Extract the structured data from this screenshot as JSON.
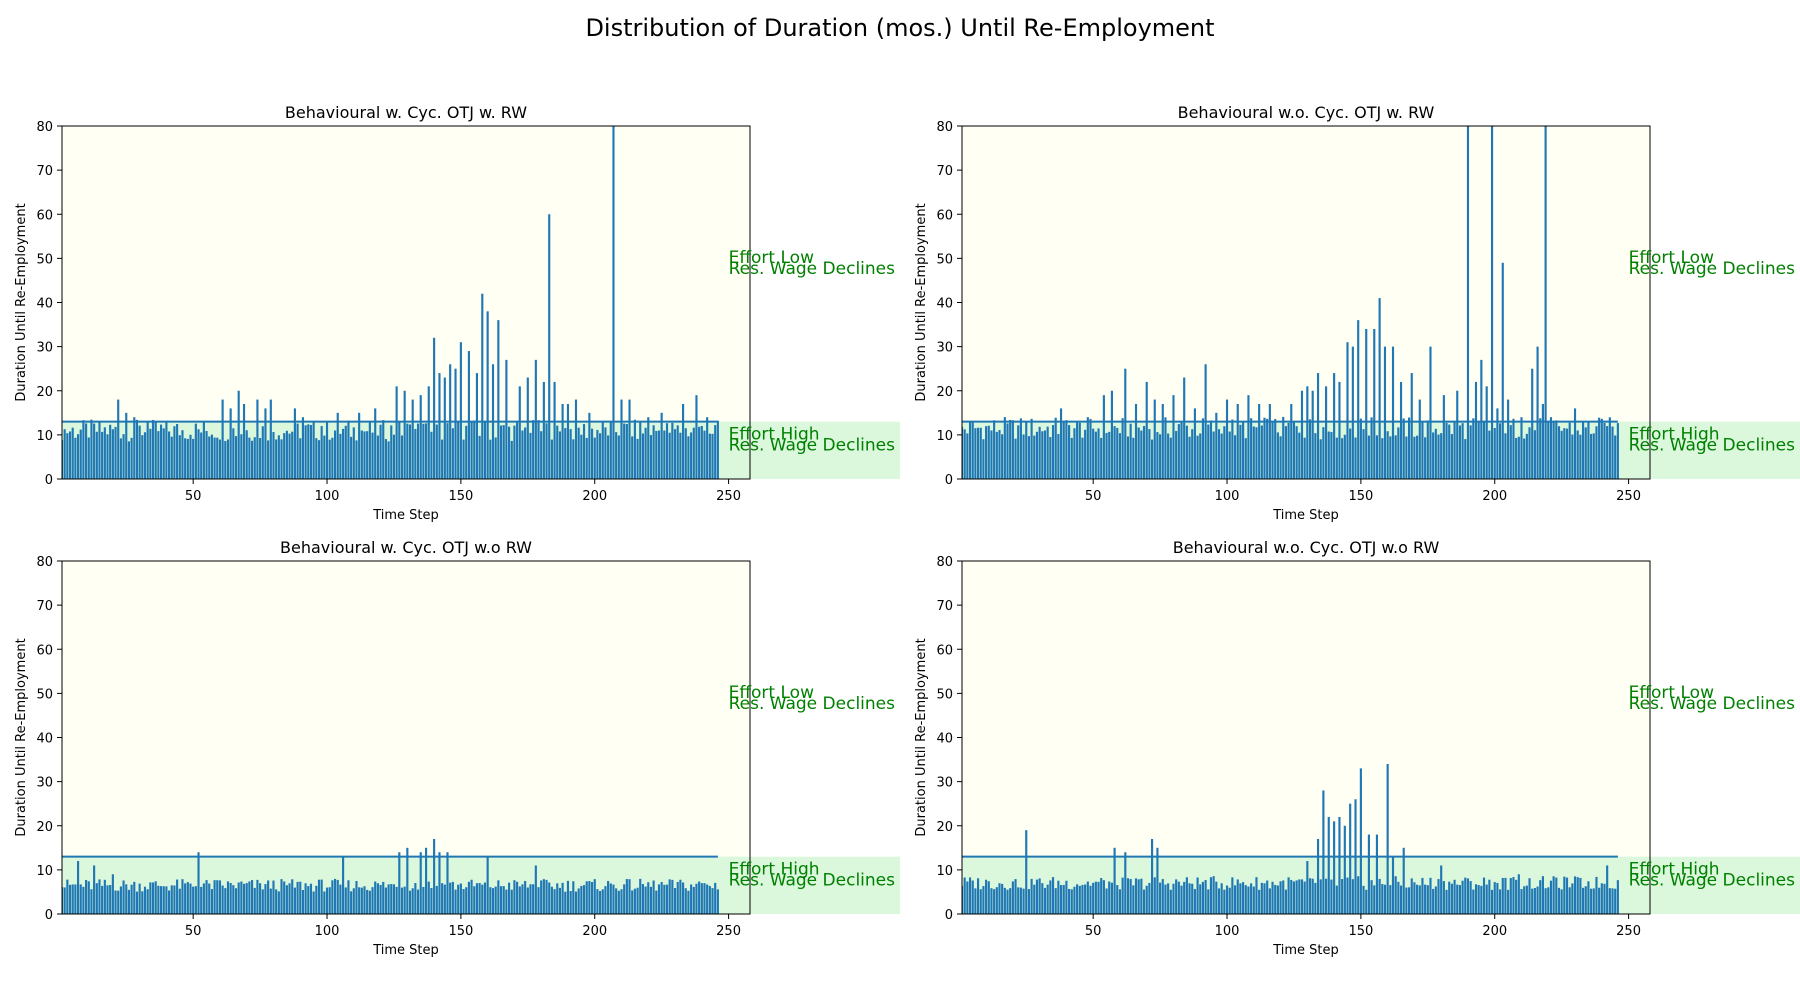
{
  "figure": {
    "title": "Distribution of Duration (mos.) Until Re-Employment"
  },
  "colors": {
    "bar": "#1f77b4",
    "line": "#1f77b4",
    "band_low": "#fffff4",
    "band_high": "#dbf7dc",
    "annotation": "#008000"
  },
  "chart_data": [
    {
      "type": "bar",
      "title": "Behavioural w. Cyc. OTJ w. RW",
      "xlabel": "Time Step",
      "ylabel": "Duration Until Re-Employment",
      "xlim": [
        1,
        258
      ],
      "ylim": [
        0,
        80
      ],
      "xticks": [
        50,
        100,
        150,
        200,
        250
      ],
      "yticks": [
        0,
        10,
        20,
        30,
        40,
        50,
        60,
        70,
        80
      ],
      "threshold": 13,
      "band_high": [
        0,
        13
      ],
      "band_low": [
        13,
        80
      ],
      "annotations": [
        {
          "text": "Effort Low",
          "y": 49
        },
        {
          "text": "Res. Wage Declines",
          "y": 46.5
        },
        {
          "text": "Effort High",
          "y": 9
        },
        {
          "text": "Res. Wage Declines",
          "y": 6.5
        }
      ],
      "n_steps": 246,
      "base_level": 11,
      "spikes": [
        [
          22,
          18
        ],
        [
          25,
          15
        ],
        [
          28,
          14
        ],
        [
          33,
          13
        ],
        [
          61,
          18
        ],
        [
          64,
          16
        ],
        [
          67,
          20
        ],
        [
          69,
          17
        ],
        [
          74,
          18
        ],
        [
          77,
          16
        ],
        [
          79,
          18
        ],
        [
          88,
          16
        ],
        [
          91,
          14
        ],
        [
          98,
          12
        ],
        [
          104,
          15
        ],
        [
          112,
          15
        ],
        [
          118,
          16
        ],
        [
          126,
          21
        ],
        [
          129,
          20
        ],
        [
          132,
          18
        ],
        [
          135,
          19
        ],
        [
          138,
          21
        ],
        [
          140,
          32
        ],
        [
          142,
          24
        ],
        [
          144,
          23
        ],
        [
          146,
          26
        ],
        [
          148,
          25
        ],
        [
          150,
          31
        ],
        [
          153,
          29
        ],
        [
          156,
          24
        ],
        [
          158,
          42
        ],
        [
          160,
          38
        ],
        [
          162,
          26
        ],
        [
          164,
          36
        ],
        [
          167,
          27
        ],
        [
          172,
          21
        ],
        [
          175,
          23
        ],
        [
          178,
          27
        ],
        [
          181,
          22
        ],
        [
          183,
          60
        ],
        [
          185,
          22
        ],
        [
          188,
          17
        ],
        [
          190,
          17
        ],
        [
          193,
          18
        ],
        [
          198,
          15
        ],
        [
          207,
          80
        ],
        [
          210,
          18
        ],
        [
          213,
          18
        ],
        [
          220,
          14
        ],
        [
          225,
          15
        ],
        [
          233,
          17
        ],
        [
          238,
          19
        ],
        [
          242,
          14
        ]
      ]
    },
    {
      "type": "bar",
      "title": "Behavioural w.o. Cyc. OTJ w. RW",
      "xlabel": "Time Step",
      "ylabel": "Duration Until Re-Employment",
      "xlim": [
        1,
        258
      ],
      "ylim": [
        0,
        80
      ],
      "xticks": [
        50,
        100,
        150,
        200,
        250
      ],
      "yticks": [
        0,
        10,
        20,
        30,
        40,
        50,
        60,
        70,
        80
      ],
      "threshold": 13,
      "band_high": [
        0,
        13
      ],
      "band_low": [
        13,
        80
      ],
      "annotations": [
        {
          "text": "Effort Low",
          "y": 49
        },
        {
          "text": "Res. Wage Declines",
          "y": 46.5
        },
        {
          "text": "Effort High",
          "y": 9
        },
        {
          "text": "Res. Wage Declines",
          "y": 6.5
        }
      ],
      "n_steps": 246,
      "base_level": 11.5,
      "spikes": [
        [
          38,
          16
        ],
        [
          54,
          19
        ],
        [
          57,
          20
        ],
        [
          62,
          25
        ],
        [
          66,
          17
        ],
        [
          70,
          22
        ],
        [
          73,
          18
        ],
        [
          76,
          17
        ],
        [
          80,
          19
        ],
        [
          84,
          23
        ],
        [
          88,
          16
        ],
        [
          92,
          26
        ],
        [
          96,
          15
        ],
        [
          100,
          18
        ],
        [
          104,
          17
        ],
        [
          108,
          19
        ],
        [
          112,
          17
        ],
        [
          116,
          17
        ],
        [
          124,
          17
        ],
        [
          128,
          20
        ],
        [
          130,
          21
        ],
        [
          132,
          20
        ],
        [
          134,
          24
        ],
        [
          137,
          21
        ],
        [
          140,
          24
        ],
        [
          142,
          22
        ],
        [
          145,
          31
        ],
        [
          147,
          30
        ],
        [
          149,
          36
        ],
        [
          152,
          34
        ],
        [
          155,
          34
        ],
        [
          157,
          41
        ],
        [
          159,
          30
        ],
        [
          162,
          30
        ],
        [
          165,
          22
        ],
        [
          169,
          24
        ],
        [
          172,
          18
        ],
        [
          176,
          30
        ],
        [
          181,
          19
        ],
        [
          186,
          20
        ],
        [
          190,
          80
        ],
        [
          193,
          22
        ],
        [
          195,
          27
        ],
        [
          197,
          21
        ],
        [
          199,
          80
        ],
        [
          201,
          16
        ],
        [
          203,
          49
        ],
        [
          205,
          18
        ],
        [
          210,
          14
        ],
        [
          214,
          25
        ],
        [
          216,
          30
        ],
        [
          218,
          17
        ],
        [
          219,
          80
        ],
        [
          230,
          16
        ],
        [
          242,
          12
        ]
      ]
    },
    {
      "type": "bar",
      "title": "Behavioural w. Cyc. OTJ w.o RW",
      "xlabel": "Time Step",
      "ylabel": "Duration Until Re-Employment",
      "xlim": [
        1,
        258
      ],
      "ylim": [
        0,
        80
      ],
      "xticks": [
        50,
        100,
        150,
        200,
        250
      ],
      "yticks": [
        0,
        10,
        20,
        30,
        40,
        50,
        60,
        70,
        80
      ],
      "threshold": 13,
      "band_high": [
        0,
        13
      ],
      "band_low": [
        13,
        80
      ],
      "annotations": [
        {
          "text": "Effort Low",
          "y": 49
        },
        {
          "text": "Res. Wage Declines",
          "y": 46.5
        },
        {
          "text": "Effort High",
          "y": 9
        },
        {
          "text": "Res. Wage Declines",
          "y": 6.5
        }
      ],
      "n_steps": 246,
      "base_level": 6.5,
      "spikes": [
        [
          7,
          12
        ],
        [
          13,
          11
        ],
        [
          20,
          9
        ],
        [
          52,
          14
        ],
        [
          106,
          13
        ],
        [
          127,
          14
        ],
        [
          130,
          15
        ],
        [
          135,
          14
        ],
        [
          137,
          15
        ],
        [
          140,
          17
        ],
        [
          142,
          14
        ],
        [
          145,
          14
        ],
        [
          160,
          13
        ],
        [
          178,
          11
        ],
        [
          240,
          7
        ]
      ]
    },
    {
      "type": "bar",
      "title": "Behavioural w.o. Cyc. OTJ w.o RW",
      "xlabel": "Time Step",
      "ylabel": "Duration Until Re-Employment",
      "xlim": [
        1,
        258
      ],
      "ylim": [
        0,
        80
      ],
      "xticks": [
        50,
        100,
        150,
        200,
        250
      ],
      "yticks": [
        0,
        10,
        20,
        30,
        40,
        50,
        60,
        70,
        80
      ],
      "threshold": 13,
      "band_high": [
        0,
        13
      ],
      "band_low": [
        13,
        80
      ],
      "annotations": [
        {
          "text": "Effort Low",
          "y": 49
        },
        {
          "text": "Res. Wage Declines",
          "y": 46.5
        },
        {
          "text": "Effort High",
          "y": 9
        },
        {
          "text": "Res. Wage Declines",
          "y": 6.5
        }
      ],
      "n_steps": 246,
      "base_level": 7,
      "spikes": [
        [
          25,
          19
        ],
        [
          58,
          15
        ],
        [
          62,
          14
        ],
        [
          72,
          17
        ],
        [
          74,
          15
        ],
        [
          130,
          12
        ],
        [
          134,
          17
        ],
        [
          136,
          28
        ],
        [
          138,
          22
        ],
        [
          140,
          21
        ],
        [
          142,
          22
        ],
        [
          144,
          20
        ],
        [
          146,
          25
        ],
        [
          148,
          26
        ],
        [
          150,
          33
        ],
        [
          153,
          18
        ],
        [
          156,
          18
        ],
        [
          160,
          34
        ],
        [
          162,
          13
        ],
        [
          166,
          15
        ],
        [
          180,
          11
        ],
        [
          209,
          9
        ],
        [
          242,
          11
        ]
      ]
    }
  ]
}
